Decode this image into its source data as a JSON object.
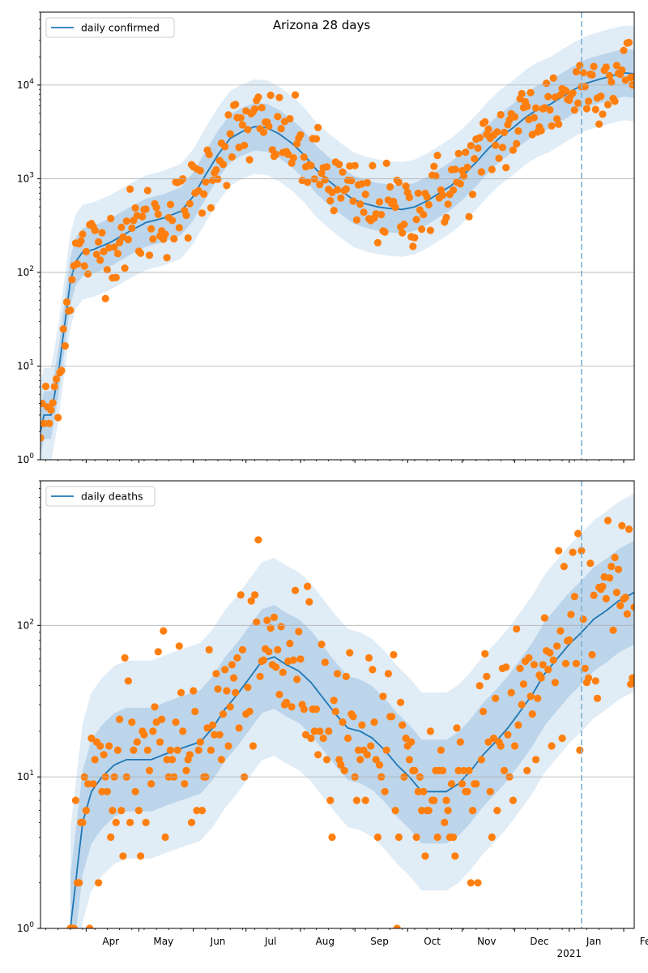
{
  "title": "Arizona 28 days",
  "colors": {
    "line": "#1f77b4",
    "points": "#ff7f0e",
    "band_light": "#c6dcee",
    "band_dark": "#9ec2e2",
    "grid": "#b0b0b0",
    "vline": "#7fb0d3"
  },
  "chart_data": [
    {
      "type": "line",
      "legend": "daily confirmed",
      "legend_loc": "upper left",
      "yscale": "log",
      "ylim": [
        1,
        60000
      ],
      "ytick_labels": [
        "10^0",
        "10^1",
        "10^2",
        "10^3",
        "10^4"
      ],
      "x_start": "2020-03-06",
      "x_end": "2021-02-07",
      "vline_date": "2021-01-08",
      "grid_y": true,
      "series_points": "observed daily values (orange markers)",
      "model_line": [
        [
          "2020-03-06",
          2
        ],
        [
          "2020-03-08",
          3
        ],
        [
          "2020-03-12",
          3
        ],
        [
          "2020-03-16",
          8
        ],
        [
          "2020-03-20",
          30
        ],
        [
          "2020-03-23",
          80
        ],
        [
          "2020-03-26",
          130
        ],
        [
          "2020-03-30",
          165
        ],
        [
          "2020-04-05",
          175
        ],
        [
          "2020-04-15",
          210
        ],
        [
          "2020-04-25",
          270
        ],
        [
          "2020-05-05",
          340
        ],
        [
          "2020-05-15",
          380
        ],
        [
          "2020-05-25",
          450
        ],
        [
          "2020-06-01",
          650
        ],
        [
          "2020-06-08",
          1100
        ],
        [
          "2020-06-15",
          1800
        ],
        [
          "2020-06-22",
          2700
        ],
        [
          "2020-06-29",
          3200
        ],
        [
          "2020-07-06",
          3600
        ],
        [
          "2020-07-13",
          3500
        ],
        [
          "2020-07-20",
          3000
        ],
        [
          "2020-07-27",
          2400
        ],
        [
          "2020-08-03",
          1800
        ],
        [
          "2020-08-10",
          1250
        ],
        [
          "2020-08-17",
          950
        ],
        [
          "2020-08-24",
          750
        ],
        [
          "2020-08-31",
          600
        ],
        [
          "2020-09-07",
          540
        ],
        [
          "2020-09-14",
          500
        ],
        [
          "2020-09-21",
          480
        ],
        [
          "2020-09-28",
          470
        ],
        [
          "2020-10-05",
          500
        ],
        [
          "2020-10-12",
          580
        ],
        [
          "2020-10-19",
          700
        ],
        [
          "2020-10-26",
          850
        ],
        [
          "2020-11-02",
          1100
        ],
        [
          "2020-11-09",
          1500
        ],
        [
          "2020-11-16",
          2100
        ],
        [
          "2020-11-23",
          2800
        ],
        [
          "2020-11-30",
          3500
        ],
        [
          "2020-12-07",
          4500
        ],
        [
          "2020-12-14",
          5500
        ],
        [
          "2020-12-21",
          6200
        ],
        [
          "2020-12-28",
          7500
        ],
        [
          "2021-01-04",
          9000
        ],
        [
          "2021-01-11",
          10500
        ],
        [
          "2021-01-18",
          11500
        ],
        [
          "2021-01-25",
          12500
        ],
        [
          "2021-02-01",
          13500
        ],
        [
          "2021-02-07",
          13200
        ]
      ],
      "band_scale": {
        "inner": 1.8,
        "outer": 3.2
      }
    },
    {
      "type": "line",
      "legend": "daily deaths",
      "legend_loc": "upper left",
      "yscale": "log",
      "ylim": [
        1,
        900
      ],
      "ytick_labels": [
        "10^0",
        "10^1",
        "10^2"
      ],
      "x_start": "2020-03-06",
      "x_end": "2021-02-07",
      "vline_date": "2021-01-08",
      "grid_y": true,
      "series_points": "observed daily values (orange markers)",
      "x_tick_labels": [
        "Apr",
        "May",
        "Jun",
        "Jul",
        "Aug",
        "Sep",
        "Oct",
        "Nov",
        "Dec",
        "Jan",
        "Feb"
      ],
      "x_tick_dates": [
        "2020-04-01",
        "2020-05-01",
        "2020-06-01",
        "2020-07-01",
        "2020-08-01",
        "2020-09-01",
        "2020-10-01",
        "2020-11-01",
        "2020-12-01",
        "2021-01-01",
        "2021-02-01"
      ],
      "x_year_label": "2021",
      "model_line": [
        [
          "2020-03-23",
          1
        ],
        [
          "2020-03-26",
          2
        ],
        [
          "2020-03-30",
          5
        ],
        [
          "2020-04-04",
          8
        ],
        [
          "2020-04-10",
          10
        ],
        [
          "2020-04-17",
          12
        ],
        [
          "2020-04-24",
          13
        ],
        [
          "2020-05-01",
          13
        ],
        [
          "2020-05-08",
          13
        ],
        [
          "2020-05-15",
          14
        ],
        [
          "2020-05-22",
          15
        ],
        [
          "2020-05-29",
          16
        ],
        [
          "2020-06-05",
          17
        ],
        [
          "2020-06-12",
          21
        ],
        [
          "2020-06-19",
          28
        ],
        [
          "2020-06-26",
          35
        ],
        [
          "2020-07-03",
          45
        ],
        [
          "2020-07-10",
          58
        ],
        [
          "2020-07-17",
          62
        ],
        [
          "2020-07-24",
          55
        ],
        [
          "2020-07-31",
          50
        ],
        [
          "2020-08-07",
          42
        ],
        [
          "2020-08-14",
          33
        ],
        [
          "2020-08-21",
          26
        ],
        [
          "2020-08-28",
          21
        ],
        [
          "2020-09-04",
          20
        ],
        [
          "2020-09-11",
          18
        ],
        [
          "2020-09-18",
          15
        ],
        [
          "2020-09-25",
          12
        ],
        [
          "2020-10-02",
          10
        ],
        [
          "2020-10-09",
          8
        ],
        [
          "2020-10-16",
          8
        ],
        [
          "2020-10-23",
          8
        ],
        [
          "2020-10-30",
          9
        ],
        [
          "2020-11-06",
          11
        ],
        [
          "2020-11-13",
          14
        ],
        [
          "2020-11-20",
          17
        ],
        [
          "2020-11-27",
          21
        ],
        [
          "2020-12-04",
          27
        ],
        [
          "2020-12-11",
          35
        ],
        [
          "2020-12-18",
          48
        ],
        [
          "2020-12-25",
          60
        ],
        [
          "2021-01-01",
          75
        ],
        [
          "2021-01-08",
          90
        ],
        [
          "2021-01-15",
          110
        ],
        [
          "2021-01-22",
          125
        ],
        [
          "2021-01-29",
          145
        ],
        [
          "2021-02-07",
          165
        ]
      ],
      "band_scale": {
        "inner": 2.2,
        "outer": 4.5
      }
    }
  ]
}
